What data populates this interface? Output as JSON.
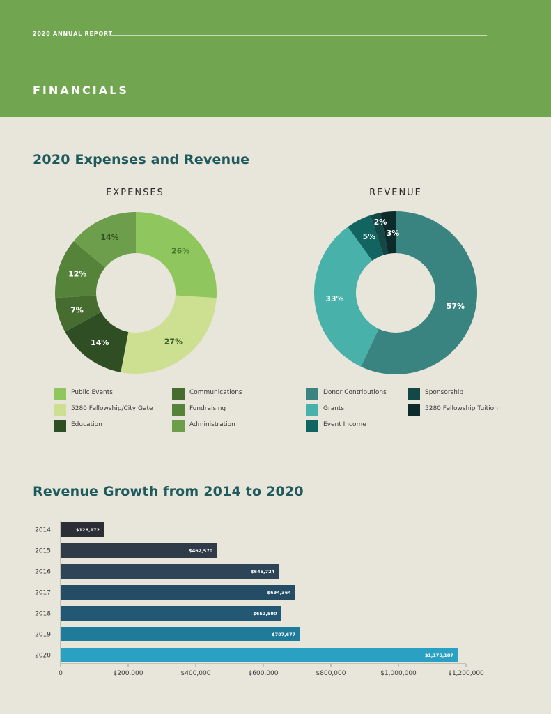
{
  "header": {
    "report_label": "2020 ANNUAL REPORT",
    "title": "FINANCIALS"
  },
  "sections": {
    "expenses_revenue_title": "2020 Expenses and Revenue",
    "growth_title": "Revenue Growth from 2014 to 2020"
  },
  "chart_data": [
    {
      "type": "pie",
      "title": "EXPENSES",
      "slices": [
        {
          "label": "Public Events",
          "value": 26,
          "display": "26%",
          "color": "#8fc75e",
          "text_color": "#4a7b2e"
        },
        {
          "label": "5280 Fellowship/City Gate",
          "value": 27,
          "display": "27%",
          "color": "#cde091",
          "text_color": "#3c5f26"
        },
        {
          "label": "Education",
          "value": 14,
          "display": "14%",
          "color": "#2f4e24",
          "text_color": "#ffffff"
        },
        {
          "label": "Communications",
          "value": 7,
          "display": "7%",
          "color": "#466c30",
          "text_color": "#ffffff"
        },
        {
          "label": "Fundraising",
          "value": 12,
          "display": "12%",
          "color": "#56833a",
          "text_color": "#ffffff"
        },
        {
          "label": "Administration",
          "value": 14,
          "display": "14%",
          "color": "#6d9e4c",
          "text_color": "#2f4e24"
        }
      ]
    },
    {
      "type": "pie",
      "title": "REVENUE",
      "slices": [
        {
          "label": "Donor Contributions",
          "value": 57,
          "display": "57%",
          "color": "#398380",
          "text_color": "#ffffff"
        },
        {
          "label": "Grants",
          "value": 33,
          "display": "33%",
          "color": "#48b1aa",
          "text_color": "#ffffff"
        },
        {
          "label": "Event Income",
          "value": 5,
          "display": "5%",
          "color": "#126460",
          "text_color": "#ffffff"
        },
        {
          "label": "Sponsorship",
          "value": 2,
          "display": "2%",
          "color": "#134846",
          "text_color": "#ffffff"
        },
        {
          "label": "5280 Fellowship Tuition",
          "value": 3,
          "display": "3%",
          "color": "#0d2b2a",
          "text_color": "#ffffff"
        }
      ]
    },
    {
      "type": "bar",
      "orientation": "horizontal",
      "categories": [
        "2014",
        "2015",
        "2016",
        "2017",
        "2018",
        "2019",
        "2020"
      ],
      "values": [
        128172,
        462570,
        645724,
        694364,
        652590,
        707677,
        1175187
      ],
      "value_labels": [
        "$128,172",
        "$462,570",
        "$645,724",
        "$694,364",
        "$652,590",
        "$707,677",
        "$1,175,187"
      ],
      "colors": [
        "#2b2f35",
        "#2f3b48",
        "#2e4457",
        "#254c65",
        "#225874",
        "#1f7b9a",
        "#2aa0c2"
      ],
      "xlim": [
        0,
        1200000
      ],
      "xticks": [
        0,
        200000,
        400000,
        600000,
        800000,
        1000000,
        1200000
      ],
      "xtick_labels": [
        "0",
        "$200,000",
        "$400,000",
        "$600,000",
        "$800,000",
        "$1,000,000",
        "$1,200,000"
      ]
    }
  ],
  "legends": {
    "expenses": [
      {
        "label": "Public Events",
        "color": "#8fc75e"
      },
      {
        "label": "5280 Fellowship/City Gate",
        "color": "#cde091"
      },
      {
        "label": "Education",
        "color": "#2f4e24"
      },
      {
        "label": "Communications",
        "color": "#466c30"
      },
      {
        "label": "Fundraising",
        "color": "#56833a"
      },
      {
        "label": "Administration",
        "color": "#6d9e4c"
      }
    ],
    "revenue": [
      {
        "label": "Donor Contributions",
        "color": "#398380"
      },
      {
        "label": "Grants",
        "color": "#48b1aa"
      },
      {
        "label": "Event Income",
        "color": "#126460"
      },
      {
        "label": "Sponsorship",
        "color": "#134846"
      },
      {
        "label": "5280 Fellowship Tuition",
        "color": "#0d2b2a"
      }
    ]
  }
}
